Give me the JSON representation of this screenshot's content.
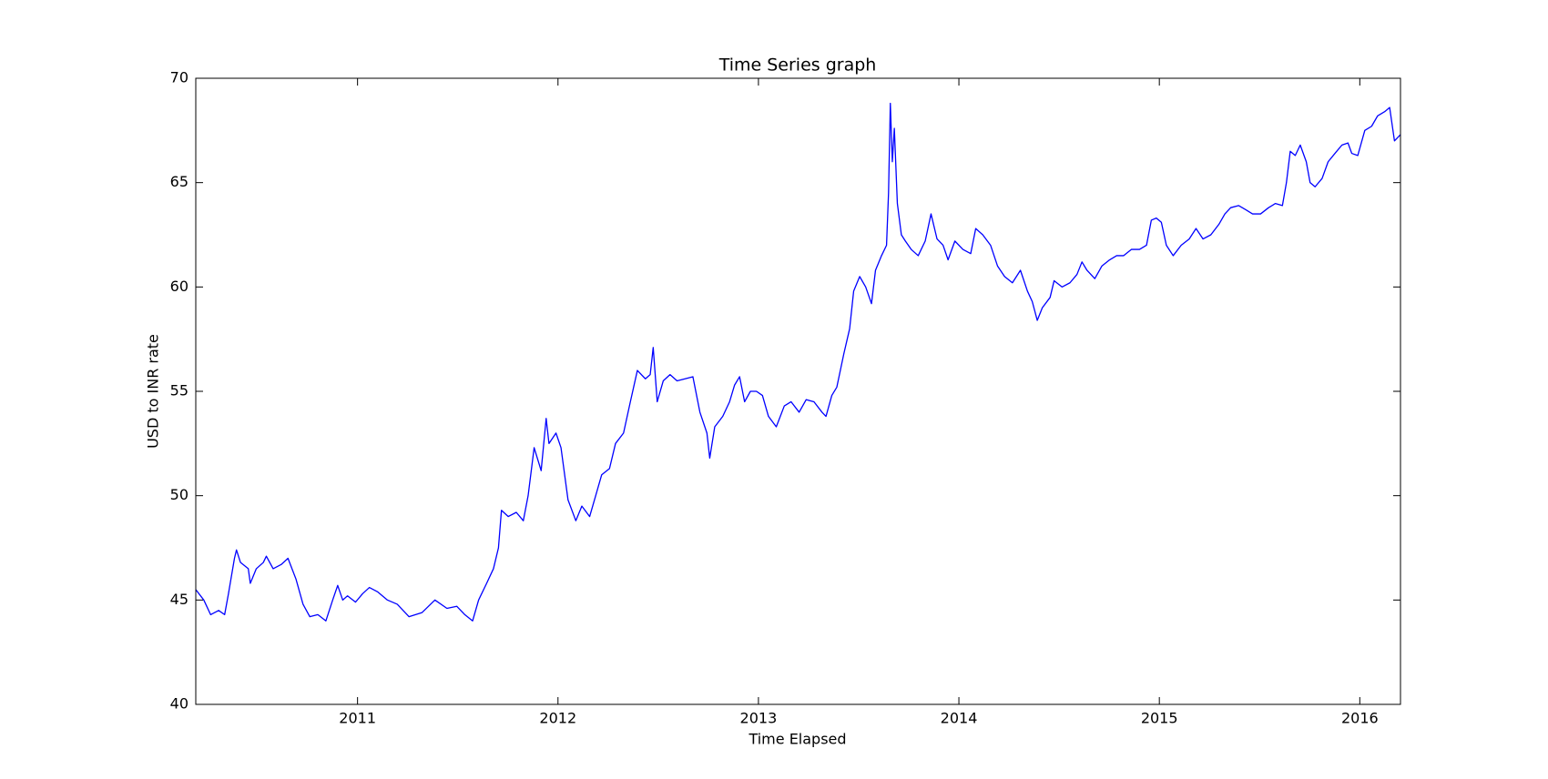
{
  "chart_data": {
    "type": "line",
    "title": "Time Series graph",
    "xlabel": "Time Elapsed",
    "ylabel": "USD to INR rate",
    "xlim": [
      2010.193,
      2016.203
    ],
    "xticks": [
      2011,
      2012,
      2013,
      2014,
      2015,
      2016
    ],
    "ylim": [
      40,
      70
    ],
    "yticks": [
      40,
      45,
      50,
      55,
      60,
      65,
      70
    ],
    "grid": false,
    "series": [
      {
        "color": "#0000ff",
        "x": [
          2010.193,
          2010.233,
          2010.267,
          2010.307,
          2010.337,
          2010.356,
          2010.386,
          2010.396,
          2010.416,
          2010.455,
          2010.465,
          2010.495,
          2010.53,
          2010.545,
          2010.579,
          2010.619,
          2010.653,
          2010.693,
          2010.728,
          2010.762,
          2010.802,
          2010.842,
          2010.876,
          2010.901,
          2010.926,
          2010.95,
          2010.99,
          2011.025,
          2011.059,
          2011.099,
          2011.149,
          2011.198,
          2011.257,
          2011.322,
          2011.386,
          2011.446,
          2011.495,
          2011.535,
          2011.574,
          2011.604,
          2011.644,
          2011.678,
          2011.703,
          2011.718,
          2011.752,
          2011.792,
          2011.827,
          2011.851,
          2011.881,
          2011.916,
          2011.941,
          2011.955,
          2011.99,
          2012.015,
          2012.05,
          2012.089,
          2012.119,
          2012.158,
          2012.188,
          2012.218,
          2012.257,
          2012.287,
          2012.327,
          2012.361,
          2012.396,
          2012.436,
          2012.46,
          2012.475,
          2012.495,
          2012.525,
          2012.559,
          2012.594,
          2012.634,
          2012.673,
          2012.708,
          2012.743,
          2012.757,
          2012.782,
          2012.822,
          2012.856,
          2012.881,
          2012.906,
          2012.931,
          2012.96,
          2012.99,
          2013.02,
          2013.05,
          2013.089,
          2013.129,
          2013.163,
          2013.203,
          2013.238,
          2013.277,
          2013.317,
          2013.337,
          2013.366,
          2013.391,
          2013.426,
          2013.455,
          2013.475,
          2013.505,
          2013.535,
          2013.564,
          2013.584,
          2013.614,
          2013.639,
          2013.649,
          2013.658,
          2013.668,
          2013.678,
          2013.693,
          2013.713,
          2013.733,
          2013.762,
          2013.797,
          2013.832,
          2013.861,
          2013.891,
          2013.921,
          2013.946,
          2013.98,
          2014.02,
          2014.059,
          2014.084,
          2014.119,
          2014.158,
          2014.193,
          2014.228,
          2014.267,
          2014.307,
          2014.342,
          2014.366,
          2014.391,
          2014.416,
          2014.455,
          2014.475,
          2014.515,
          2014.554,
          2014.589,
          2014.614,
          2014.639,
          2014.678,
          2014.713,
          2014.752,
          2014.787,
          2014.822,
          2014.861,
          2014.901,
          2014.936,
          2014.96,
          2014.985,
          2015.01,
          2015.035,
          2015.069,
          2015.109,
          2015.149,
          2015.183,
          2015.218,
          2015.257,
          2015.297,
          2015.327,
          2015.356,
          2015.396,
          2015.431,
          2015.465,
          2015.505,
          2015.545,
          2015.579,
          2015.614,
          2015.634,
          2015.653,
          2015.678,
          2015.703,
          2015.733,
          2015.752,
          2015.777,
          2015.812,
          2015.842,
          2015.876,
          2015.911,
          2015.941,
          2015.96,
          2015.99,
          2016.025,
          2016.059,
          2016.089,
          2016.124,
          2016.149,
          2016.173,
          2016.203
        ],
        "values": [
          45.5,
          45.0,
          44.3,
          44.5,
          44.3,
          45.3,
          47.0,
          47.4,
          46.8,
          46.5,
          45.8,
          46.5,
          46.8,
          47.1,
          46.5,
          46.7,
          47.0,
          46.0,
          44.8,
          44.2,
          44.3,
          44.0,
          45.0,
          45.7,
          45.0,
          45.2,
          44.9,
          45.3,
          45.6,
          45.4,
          45.0,
          44.8,
          44.2,
          44.4,
          45.0,
          44.6,
          44.7,
          44.3,
          44.0,
          45.0,
          45.8,
          46.5,
          47.5,
          49.3,
          49.0,
          49.2,
          48.8,
          50.0,
          52.3,
          51.2,
          53.7,
          52.5,
          53.0,
          52.3,
          49.8,
          48.8,
          49.5,
          49.0,
          50.0,
          51.0,
          51.3,
          52.5,
          53.0,
          54.5,
          56.0,
          55.6,
          55.8,
          57.1,
          54.5,
          55.5,
          55.8,
          55.5,
          55.6,
          55.7,
          54.0,
          53.0,
          51.8,
          53.3,
          53.8,
          54.5,
          55.3,
          55.7,
          54.5,
          55.0,
          55.0,
          54.8,
          53.8,
          53.3,
          54.3,
          54.5,
          54.0,
          54.6,
          54.5,
          54.0,
          53.8,
          54.8,
          55.2,
          56.8,
          58.0,
          59.8,
          60.5,
          60.0,
          59.2,
          60.8,
          61.5,
          62.0,
          64.5,
          68.8,
          66.0,
          67.6,
          64.0,
          62.5,
          62.2,
          61.8,
          61.5,
          62.2,
          63.5,
          62.3,
          62.0,
          61.3,
          62.2,
          61.8,
          61.6,
          62.8,
          62.5,
          62.0,
          61.0,
          60.5,
          60.2,
          60.8,
          59.8,
          59.3,
          58.4,
          59.0,
          59.5,
          60.3,
          60.0,
          60.2,
          60.6,
          61.2,
          60.8,
          60.4,
          61.0,
          61.3,
          61.5,
          61.5,
          61.8,
          61.8,
          62.0,
          63.2,
          63.3,
          63.1,
          62.0,
          61.5,
          62.0,
          62.3,
          62.8,
          62.3,
          62.5,
          63.0,
          63.5,
          63.8,
          63.9,
          63.7,
          63.5,
          63.5,
          63.8,
          64.0,
          63.9,
          65.0,
          66.5,
          66.3,
          66.8,
          66.0,
          65.0,
          64.8,
          65.2,
          66.0,
          66.4,
          66.8,
          66.9,
          66.4,
          66.3,
          67.5,
          67.7,
          68.2,
          68.4,
          68.6,
          67.0,
          67.3
        ]
      }
    ]
  }
}
